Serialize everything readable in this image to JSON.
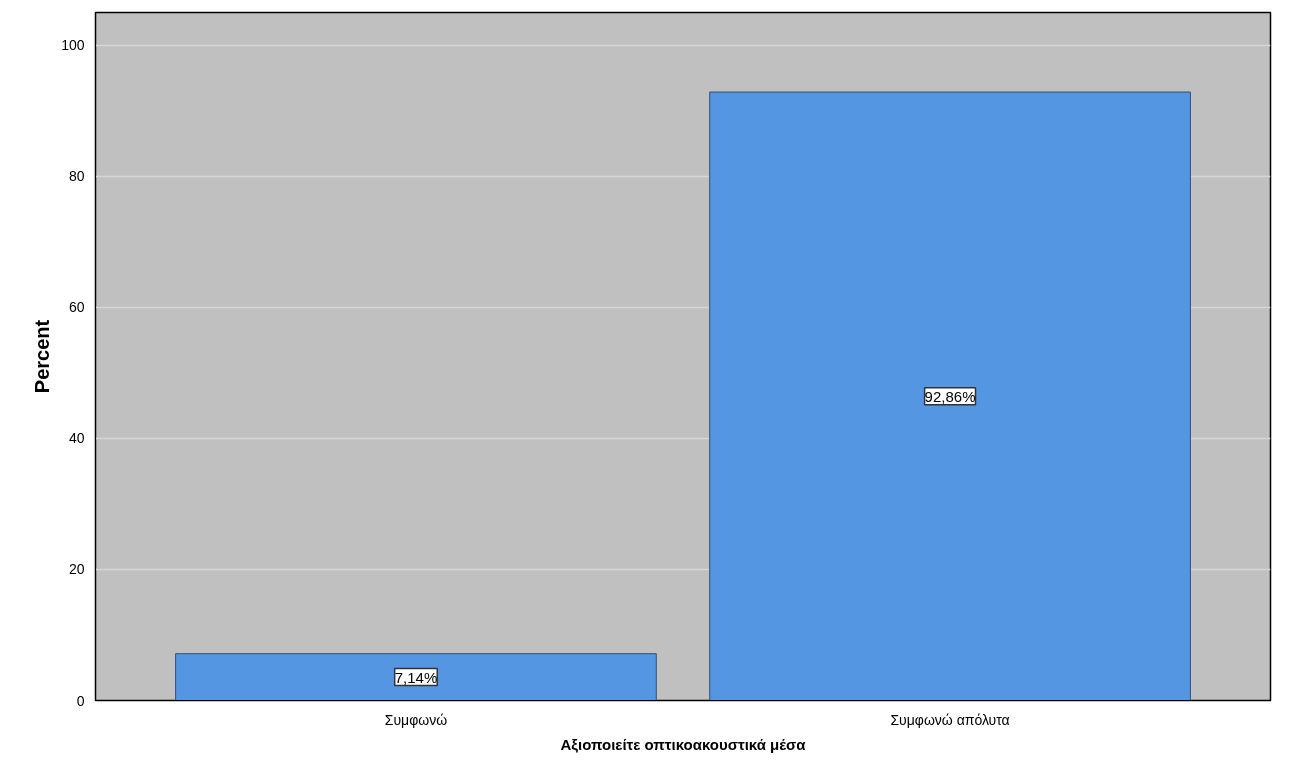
{
  "chart_data": {
    "type": "bar",
    "xlabel": "Αξιοποιείτε οπτικοακουστικά μέσα",
    "ylabel": "Percent",
    "categories": [
      "Συμφωνώ",
      "Συμφωνώ απόλυτα"
    ],
    "values": [
      7.14,
      92.86
    ],
    "value_labels": [
      "7,14%",
      "92,86%"
    ],
    "color": "#5596e3",
    "ylim": [
      0,
      105
    ],
    "yticks": [
      0,
      20,
      40,
      60,
      80,
      100
    ],
    "grid": "y"
  }
}
